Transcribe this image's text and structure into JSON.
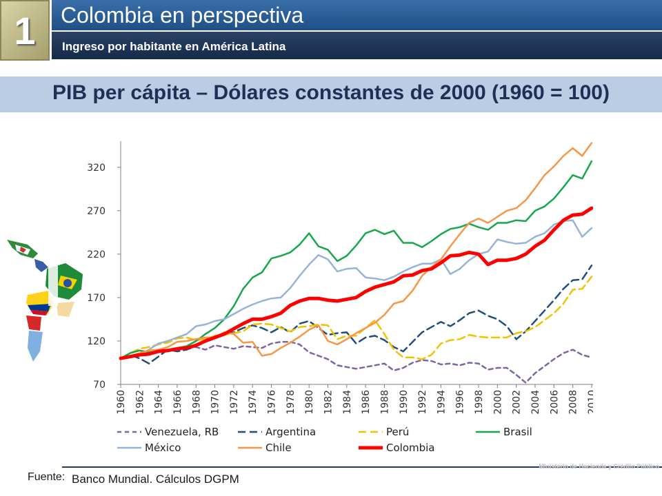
{
  "slide": {
    "number": "1",
    "title": "Colombia en perspectiva",
    "subtitle": "Ingreso por habitante en América Latina"
  },
  "banner": {
    "title": "PIB per cápita – Dólares constantes de 2000 (1960 = 100)"
  },
  "footer": {
    "label": "Fuente:",
    "source": "Banco Mundial. Cálculos DGPM",
    "brand": "Ministerio de Hacienda y Crédito Público"
  },
  "chart_data": {
    "type": "line",
    "title": "",
    "xlabel": "",
    "ylabel": "",
    "ylim": [
      70,
      350
    ],
    "yticks": [
      70,
      120,
      170,
      220,
      270,
      320
    ],
    "xlim": [
      1960,
      2010
    ],
    "xticks": [
      1960,
      1962,
      1964,
      1966,
      1968,
      1970,
      1972,
      1974,
      1976,
      1978,
      1980,
      1982,
      1984,
      1986,
      1988,
      1990,
      1992,
      1994,
      1996,
      1998,
      2000,
      2002,
      2004,
      2006,
      2008,
      2010
    ],
    "legend_position": "bottom",
    "grid": false,
    "x": [
      1960,
      1961,
      1962,
      1963,
      1964,
      1965,
      1966,
      1967,
      1968,
      1969,
      1970,
      1971,
      1972,
      1973,
      1974,
      1975,
      1976,
      1977,
      1978,
      1979,
      1980,
      1981,
      1982,
      1983,
      1984,
      1985,
      1986,
      1987,
      1988,
      1989,
      1990,
      1991,
      1992,
      1993,
      1994,
      1995,
      1996,
      1997,
      1998,
      1999,
      2000,
      2001,
      2002,
      2003,
      2004,
      2005,
      2006,
      2007,
      2008,
      2009,
      2010
    ],
    "series": [
      {
        "name": "Venezuela, RB",
        "color": "#8064a2",
        "dash": "dash",
        "width": 2.5,
        "values": [
          100,
          101,
          103,
          104,
          108,
          109,
          111,
          112,
          113,
          110,
          115,
          113,
          111,
          114,
          113,
          112,
          117,
          119,
          119,
          116,
          107,
          103,
          99,
          92,
          90,
          88,
          90,
          92,
          94,
          86,
          89,
          95,
          98,
          97,
          93,
          94,
          92,
          95,
          94,
          87,
          89,
          89,
          81,
          72,
          83,
          91,
          99,
          106,
          110,
          104,
          101
        ]
      },
      {
        "name": "Argentina",
        "color": "#1f4e79",
        "dash": "longdash",
        "width": 2.5,
        "values": [
          100,
          104,
          100,
          94,
          102,
          110,
          108,
          110,
          114,
          122,
          125,
          128,
          130,
          135,
          138,
          135,
          130,
          136,
          130,
          140,
          143,
          135,
          127,
          129,
          130,
          117,
          124,
          126,
          121,
          113,
          108,
          119,
          130,
          136,
          142,
          137,
          144,
          152,
          155,
          149,
          145,
          137,
          122,
          131,
          143,
          155,
          167,
          180,
          190,
          191,
          207
        ]
      },
      {
        "name": "Perú",
        "color": "#f2c200",
        "dash": "longdash",
        "width": 2.5,
        "values": [
          100,
          106,
          111,
          113,
          116,
          118,
          123,
          124,
          121,
          122,
          126,
          127,
          129,
          131,
          139,
          140,
          139,
          135,
          131,
          136,
          137,
          139,
          138,
          122,
          126,
          126,
          135,
          144,
          128,
          110,
          101,
          101,
          99,
          104,
          117,
          121,
          122,
          127,
          125,
          124,
          124,
          124,
          129,
          131,
          136,
          144,
          152,
          163,
          179,
          180,
          194
        ]
      },
      {
        "name": "Brasil",
        "color": "#16a64b",
        "dash": "solid",
        "width": 2.5,
        "values": [
          100,
          106,
          109,
          107,
          108,
          109,
          112,
          114,
          120,
          128,
          135,
          145,
          160,
          180,
          193,
          199,
          215,
          218,
          222,
          231,
          244,
          229,
          225,
          212,
          218,
          230,
          244,
          248,
          243,
          247,
          233,
          233,
          228,
          235,
          243,
          249,
          251,
          255,
          251,
          248,
          256,
          256,
          259,
          258,
          270,
          275,
          284,
          297,
          311,
          307,
          327
        ]
      },
      {
        "name": "México",
        "color": "#95b3d7",
        "dash": "solid",
        "width": 2.5,
        "values": [
          100,
          102,
          104,
          110,
          117,
          120,
          124,
          128,
          137,
          139,
          143,
          145,
          151,
          157,
          162,
          166,
          169,
          170,
          181,
          195,
          208,
          219,
          214,
          200,
          203,
          204,
          193,
          192,
          190,
          194,
          200,
          205,
          209,
          209,
          214,
          197,
          203,
          213,
          220,
          223,
          237,
          234,
          232,
          233,
          240,
          244,
          254,
          258,
          259,
          240,
          250
        ]
      },
      {
        "name": "Chile",
        "color": "#f79646",
        "dash": "solid",
        "width": 2.5,
        "values": [
          100,
          103,
          106,
          109,
          110,
          113,
          119,
          120,
          122,
          124,
          124,
          130,
          128,
          118,
          119,
          103,
          105,
          112,
          118,
          125,
          133,
          138,
          120,
          116,
          122,
          129,
          135,
          141,
          150,
          163,
          166,
          178,
          195,
          205,
          214,
          229,
          243,
          256,
          261,
          256,
          263,
          270,
          273,
          282,
          296,
          311,
          321,
          333,
          342,
          333,
          348
        ]
      },
      {
        "name": "Colombia",
        "color": "#ff0000",
        "dash": "solid",
        "width": 5,
        "values": [
          100,
          102,
          104,
          105,
          108,
          109,
          111,
          112,
          115,
          120,
          124,
          128,
          134,
          140,
          145,
          145,
          148,
          152,
          161,
          166,
          169,
          169,
          167,
          166,
          168,
          170,
          177,
          182,
          185,
          188,
          195,
          196,
          201,
          203,
          210,
          218,
          219,
          222,
          220,
          208,
          213,
          213,
          215,
          220,
          229,
          236,
          248,
          259,
          265,
          266,
          273
        ]
      }
    ]
  }
}
